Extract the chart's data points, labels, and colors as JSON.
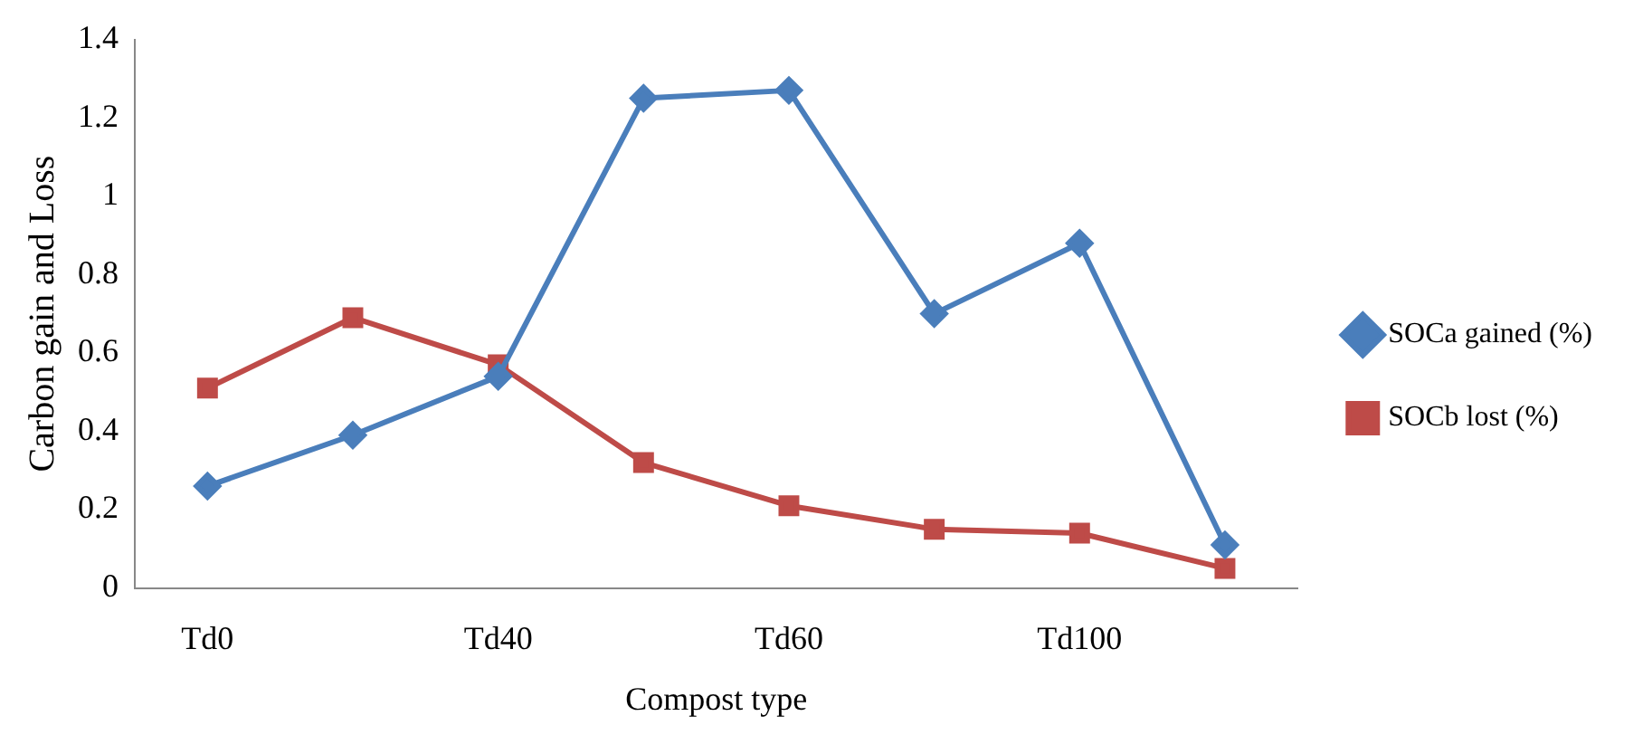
{
  "chart_data": {
    "type": "line",
    "xlabel": "Compost type",
    "ylabel": "Carbon gain and Loss",
    "categories": [
      "Td0",
      null,
      "Td40",
      null,
      "Td60",
      null,
      "Td100",
      null
    ],
    "series": [
      {
        "name": "SOCa gained (%)",
        "color": "#4a7ebb",
        "marker": "diamond",
        "values": [
          0.26,
          0.39,
          0.54,
          1.25,
          1.27,
          0.7,
          0.88,
          0.11
        ]
      },
      {
        "name": "SOCb lost (%)",
        "color": "#be4b48",
        "marker": "square",
        "values": [
          0.51,
          0.69,
          0.57,
          0.32,
          0.21,
          0.15,
          0.14,
          0.05
        ]
      }
    ],
    "ylim": [
      0,
      1.4
    ],
    "yticks": [
      0,
      0.2,
      0.4,
      0.6,
      0.8,
      1,
      1.2,
      1.4
    ],
    "grid": false,
    "legend": "right",
    "line_style": "solid"
  }
}
